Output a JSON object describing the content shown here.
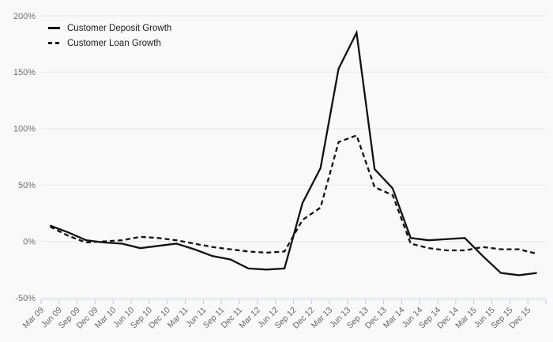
{
  "chart_data": {
    "type": "line",
    "title": "",
    "xlabel": "",
    "ylabel": "",
    "categories": [
      "Mar 09",
      "Jun 09",
      "Sep 09",
      "Dec 09",
      "Mar 10",
      "Jun 10",
      "Sep 10",
      "Dec 10",
      "Mar 11",
      "Jun 11",
      "Sep 11",
      "Dec 11",
      "Mar 12",
      "Jun 12",
      "Sep 12",
      "Dec 12",
      "Mar 13",
      "Jun 13",
      "Sep 13",
      "Dec 13",
      "Mar 14",
      "Jun 14",
      "Sep 14",
      "Dec 14",
      "Mar 15",
      "Jun 15",
      "Sep 15",
      "Dec 15"
    ],
    "series": [
      {
        "name": "Customer Deposit Growth",
        "style": "solid",
        "color": "#111111",
        "values": [
          14,
          8,
          1,
          -1,
          -2,
          -6,
          -4,
          -2,
          -7,
          -13,
          -16,
          -24,
          -25,
          -24,
          34,
          65,
          153,
          185,
          64,
          47,
          3,
          1,
          2,
          3,
          -13,
          -28,
          -30,
          -28
        ]
      },
      {
        "name": "Customer Loan Growth",
        "style": "dashed",
        "color": "#111111",
        "values": [
          13,
          5,
          -1,
          0,
          1,
          4,
          3,
          1,
          -2,
          -5,
          -7,
          -9,
          -10,
          -9,
          19,
          30,
          88,
          94,
          48,
          41,
          -2,
          -6,
          -8,
          -8,
          -5,
          -7,
          -7,
          -11
        ]
      }
    ],
    "ylim": [
      -50,
      200
    ],
    "ytick_values": [
      200,
      150,
      100,
      50,
      0,
      -50
    ],
    "ytick_labels": [
      "200%",
      "150%",
      "100%",
      "50%",
      "0%",
      "-50%"
    ],
    "grid": "horizontal",
    "legend_position": "top-left"
  },
  "theme": {
    "background": "#f9f9f9",
    "grid_color": "#e9e9e9",
    "axis_line_color": "#d6daea",
    "tick_color": "#c3c8e4",
    "y_label_color": "#6f6f6f",
    "x_label_color": "#666666",
    "line_color": "#111111"
  }
}
